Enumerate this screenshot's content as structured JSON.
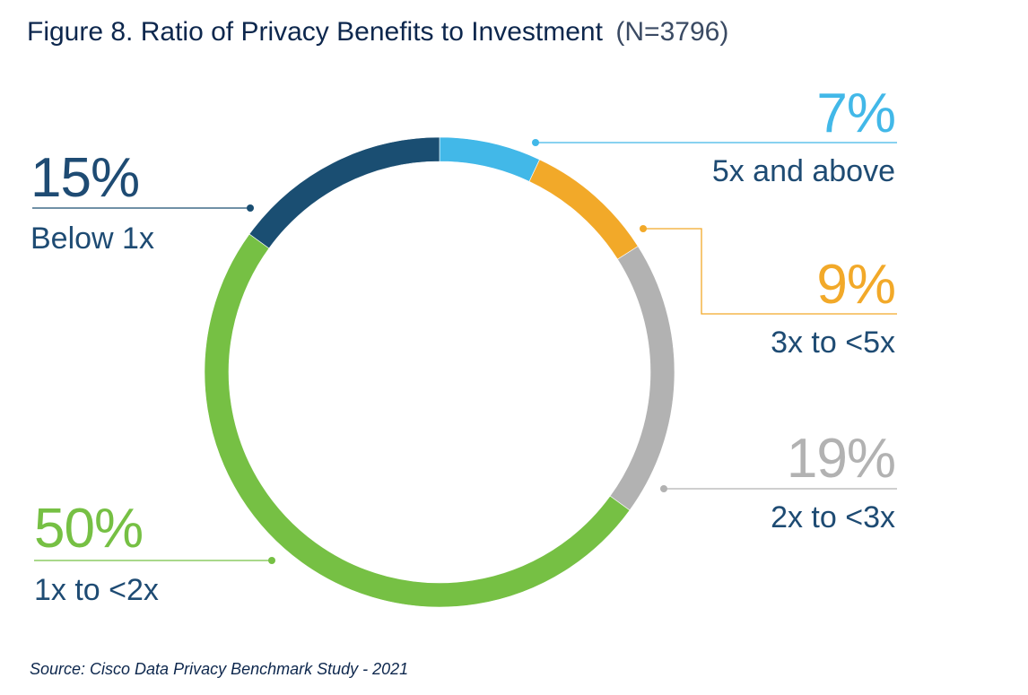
{
  "title": "Figure 8. Ratio of Privacy Benefits to Investment",
  "subtitle": "(N=3796)",
  "source": "Source: Cisco Data Privacy Benchmark Study - 2021",
  "colors": {
    "title": "#0d274d",
    "subtitle": "#3a4a63",
    "label": "#1e4b73",
    "source": "#0d274d",
    "ring_seam": "#ffffff"
  },
  "chart_data": {
    "type": "pie",
    "style": "donut",
    "start": "top",
    "direction": "clockwise",
    "categories": [
      "5x and above",
      "3x to <5x",
      "2x to <3x",
      "1x to <2x",
      "Below 1x"
    ],
    "values": [
      7,
      9,
      19,
      50,
      15
    ],
    "value_labels": [
      "7%",
      "9%",
      "19%",
      "50%",
      "15%"
    ],
    "colors": [
      "#42b8e8",
      "#f2a929",
      "#b2b2b2",
      "#76c044",
      "#1a4e72"
    ],
    "legend": "none",
    "grid": false
  }
}
